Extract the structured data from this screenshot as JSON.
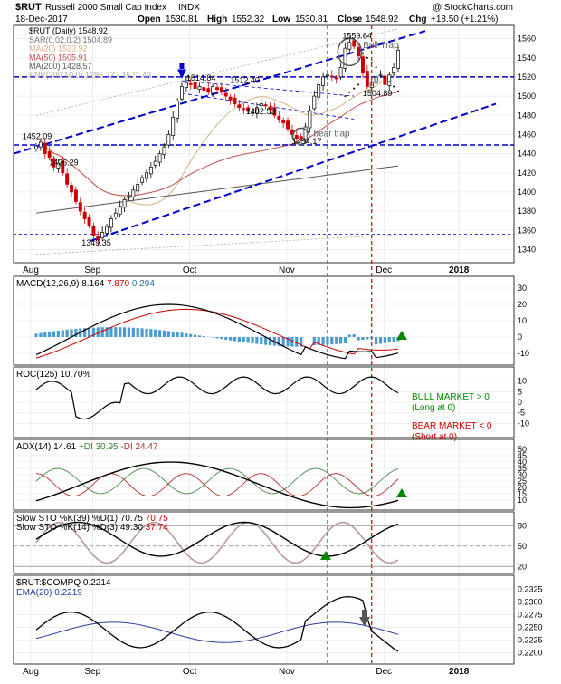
{
  "header": {
    "symbol": "$RUT",
    "name": "Russell 2000 Small Cap Index",
    "exchange": "INDX",
    "watermark": "@ StockCharts.com",
    "date": "18-Dec-2017",
    "open_label": "Open",
    "open": "1530.81",
    "high_label": "High",
    "high": "1552.32",
    "low_label": "Low",
    "low": "1530.81",
    "close_label": "Close",
    "close": "1548.92",
    "chg_label": "Chg",
    "chg": "+18.50 (+1.21%)"
  },
  "x_axis": {
    "months": [
      "Aug",
      "Sep",
      "Oct",
      "Nov",
      "Dec",
      "2018"
    ]
  },
  "colors": {
    "up": "#000000",
    "down": "#cc0000",
    "trend": "#0000cc",
    "vline_green": "#008800",
    "vline_red": "#cc0000",
    "hist": "#4a9bd0",
    "ma20": "#d4b483",
    "ma50": "#c0504d",
    "ma200": "#555555",
    "env": "#aaaaaa"
  },
  "chart_data": [
    {
      "type": "candlestick",
      "panel": "price",
      "ylim": [
        1330,
        1570
      ],
      "y_ticks": [
        1340,
        1360,
        1380,
        1400,
        1420,
        1440,
        1460,
        1480,
        1500,
        1520,
        1540,
        1560
      ],
      "legend": [
        {
          "text": "$RUT (Daily) 1548.92"
        },
        {
          "text": "SAR(0.02,0.2) 1504.89"
        },
        {
          "text": "MA(20) 1523.92"
        },
        {
          "text": "MA(50) 1505.91"
        },
        {
          "text": "MA(200) 1428.57"
        },
        {
          "text": "ENV(200,10.0) 1285.72 - 1571.43"
        }
      ],
      "price_labels": [
        "1452.09",
        "1426.29",
        "1349.35",
        "1514.84",
        "1512.40",
        "1482.53",
        "1454.17",
        "1559.64",
        "1504.89"
      ],
      "annotations": [
        "Bull Trap",
        "bear trap"
      ],
      "closes": [
        1448,
        1452,
        1440,
        1436,
        1426,
        1430,
        1420,
        1408,
        1400,
        1390,
        1380,
        1372,
        1365,
        1355,
        1350,
        1358,
        1364,
        1372,
        1378,
        1385,
        1392,
        1396,
        1402,
        1408,
        1415,
        1420,
        1426,
        1432,
        1440,
        1447,
        1460,
        1478,
        1495,
        1510,
        1514,
        1512,
        1508,
        1510,
        1506,
        1504,
        1510,
        1507,
        1504,
        1500,
        1496,
        1492,
        1488,
        1486,
        1484,
        1483,
        1488,
        1492,
        1490,
        1486,
        1480,
        1476,
        1472,
        1466,
        1460,
        1456,
        1456,
        1468,
        1485,
        1500,
        1512,
        1520,
        1522,
        1520,
        1518,
        1530,
        1550,
        1556,
        1552,
        1542,
        1524,
        1510,
        1515,
        1520,
        1522,
        1512,
        1522,
        1530,
        1548
      ]
    },
    {
      "type": "line",
      "panel": "MACD",
      "label": "MACD(12,26,9)",
      "values_text": [
        "8.164",
        "7.870",
        "0.294"
      ],
      "ylim": [
        -15,
        35
      ],
      "y_ticks": [
        -10,
        0,
        10,
        20,
        30
      ]
    },
    {
      "type": "line",
      "panel": "ROC",
      "label": "ROC(125)",
      "values_text": [
        "10.70%"
      ],
      "ylim": [
        -15,
        15
      ],
      "y_ticks": [
        -10,
        -5,
        0,
        5,
        10
      ],
      "notes": [
        {
          "text": "BULL MARKET > 0"
        },
        {
          "text": "(Long at 0)"
        },
        {
          "text": "BEAR MARKET < 0"
        },
        {
          "text": "(Short at 0)"
        }
      ]
    },
    {
      "type": "line",
      "panel": "ADX",
      "label": "ADX(14)",
      "values_text": [
        "14.61",
        "+DI 30.95",
        "-DI 24.47"
      ],
      "ylim": [
        5,
        55
      ],
      "y_ticks": [
        10,
        15,
        20,
        25,
        30,
        35,
        40,
        45,
        50
      ]
    },
    {
      "type": "line",
      "panel": "STO",
      "label1": "Slow STO %K(39) %D(1)",
      "values1_text": [
        "70.75",
        "70.75"
      ],
      "label2": "Slow STO %K(14) %D(3)",
      "values2_text": [
        "49.30",
        "37.74"
      ],
      "ylim": [
        15,
        95
      ],
      "y_ticks": [
        20,
        50,
        80
      ]
    },
    {
      "type": "line",
      "panel": "RATIO",
      "label": "$RUT:$COMPQ 0.2214",
      "label_ema": "EMA(20) 0.2219",
      "ylim": [
        0.2185,
        0.2345
      ],
      "y_ticks": [
        "0.2200",
        "0.2225",
        "0.2250",
        "0.2275",
        "0.2300",
        "0.2325"
      ]
    }
  ]
}
